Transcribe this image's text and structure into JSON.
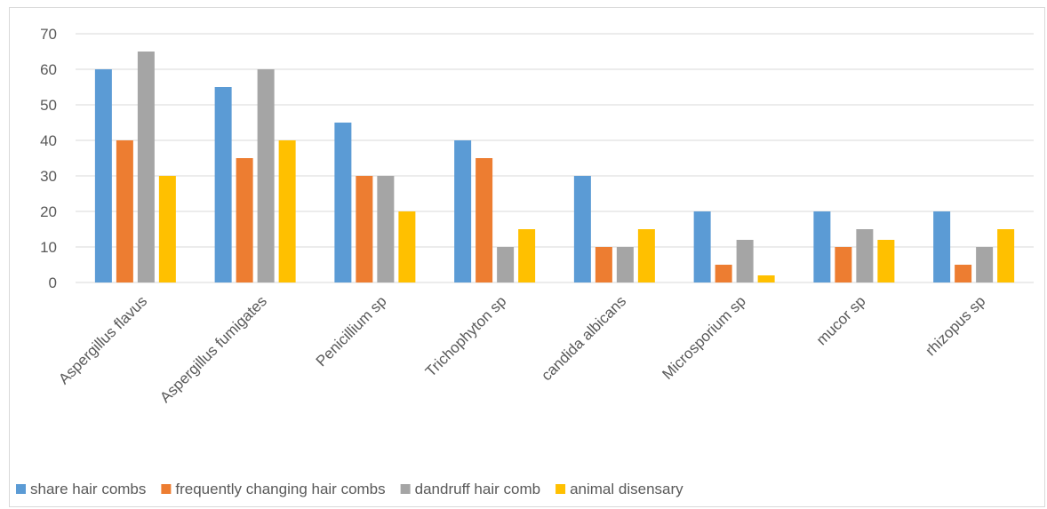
{
  "chart_data": {
    "type": "bar",
    "categories": [
      "Aspergillus flavus",
      "Aspergillus fumigates",
      "Penicillium sp",
      "Trichophyton sp",
      "candida albicans",
      "Microsporium sp",
      "mucor sp",
      "rhizopus sp"
    ],
    "series": [
      {
        "name": "share hair combs",
        "color": "#5B9BD5",
        "values": [
          60,
          55,
          45,
          40,
          30,
          20,
          20,
          20
        ]
      },
      {
        "name": "frequently changing hair combs",
        "color": "#ED7D31",
        "values": [
          40,
          35,
          30,
          35,
          10,
          5,
          10,
          5
        ]
      },
      {
        "name": "dandruff hair comb",
        "color": "#A5A5A5",
        "values": [
          65,
          60,
          30,
          10,
          10,
          12,
          15,
          10
        ]
      },
      {
        "name": "animal disensary",
        "color": "#FFC000",
        "values": [
          30,
          40,
          20,
          15,
          15,
          2,
          12,
          15
        ]
      }
    ],
    "yticks": [
      0,
      10,
      20,
      30,
      40,
      50,
      60,
      70
    ],
    "ylim": [
      0,
      70
    ],
    "grid": true,
    "gridColor": "#d9d9d9",
    "legend": "bottom",
    "title": "",
    "xlabel": "",
    "ylabel": ""
  }
}
